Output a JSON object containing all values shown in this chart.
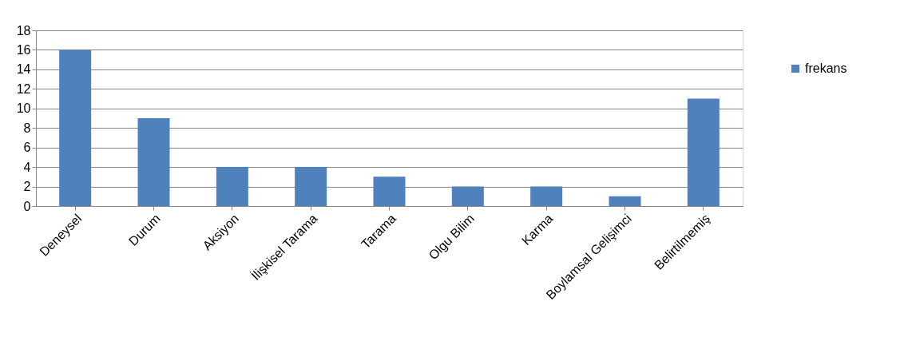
{
  "chart_data": {
    "type": "bar",
    "categories": [
      "Deneysel",
      "Durum",
      "Aksiyon",
      "İlişkisel Tarama",
      "Tarama",
      "Olgu Bilim",
      "Karma",
      "Boylamsal Gelişimci",
      "Belirtilmemiş"
    ],
    "series": [
      {
        "name": "frekans",
        "color": "#4f81bd",
        "values": [
          16,
          9,
          4,
          4,
          3,
          2,
          2,
          1,
          11
        ]
      }
    ],
    "ylim": [
      0,
      18
    ],
    "yticks": [
      0,
      2,
      4,
      6,
      8,
      10,
      12,
      14,
      16,
      18
    ],
    "grid": "y",
    "legend": "right"
  }
}
